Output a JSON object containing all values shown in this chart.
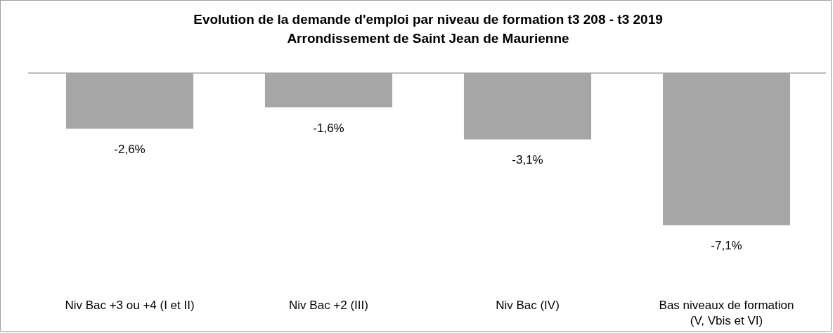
{
  "chart_data": {
    "type": "bar",
    "title": "Evolution de la demande d'emploi par niveau de formation t3 208 - t3 2019",
    "subtitle": "Arrondissement de Saint Jean de Maurienne",
    "categories": [
      "Niv Bac +3 ou +4 (I et II)",
      "Niv Bac +2 (III)",
      "Niv Bac (IV)",
      "Bas niveaux de formation (V, Vbis et VI)"
    ],
    "values": [
      -2.6,
      -1.6,
      -3.1,
      -7.1
    ],
    "value_labels": [
      "-2,6%",
      "-1,6%",
      "-3,1%",
      "-7,1%"
    ],
    "color": "#a6a6a6",
    "grid": false
  }
}
